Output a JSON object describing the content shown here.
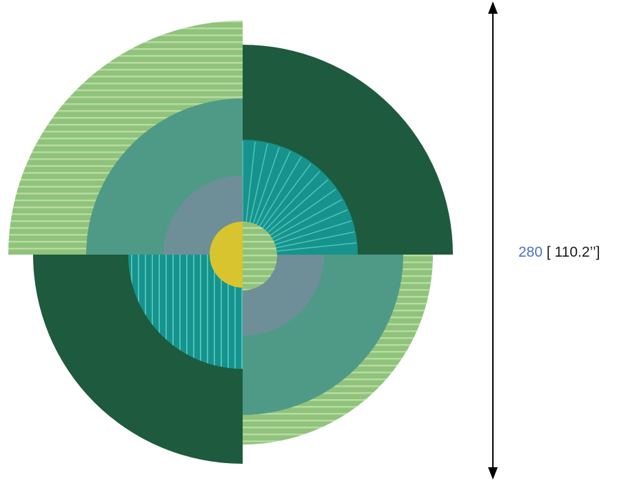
{
  "product": {
    "name": "rug",
    "colors": {
      "dark_green": "#1e5a3e",
      "stripe_green": "#8fc37c",
      "stripe_line": "#b9dba0",
      "sage_teal": "#4f9a87",
      "bright_teal": "#16938d",
      "slate_blue": "#6e8f97",
      "yellow": "#d8c42e"
    }
  },
  "dimension": {
    "value": "280",
    "imperial": "[ 110.2’’]",
    "value_color": "#4a72c4",
    "arrow_icon": "double-arrow-vertical-icon"
  }
}
